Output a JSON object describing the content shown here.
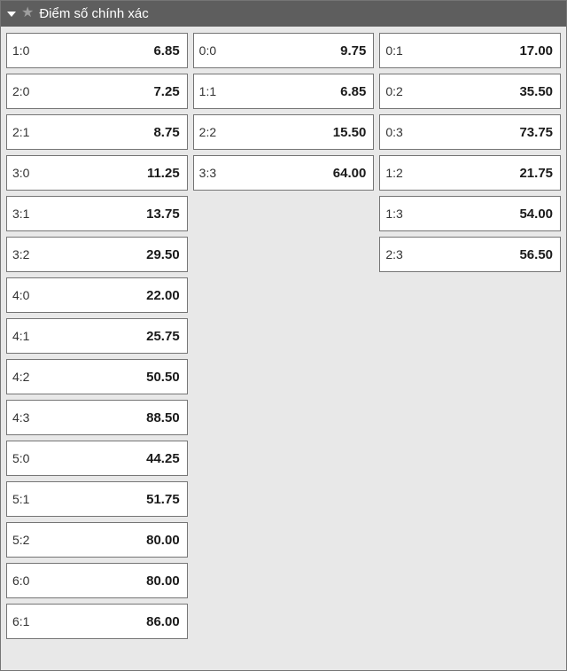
{
  "colors": {
    "header_bg": "#5e5e5e",
    "header_text": "#ffffff",
    "star": "#9e9e9e",
    "body_bg": "#e8e8e8",
    "cell_bg": "#ffffff",
    "cell_border": "#757575",
    "score_text": "#333333",
    "odds_text": "#1a1a1a"
  },
  "header": {
    "title": "Điểm số chính xác"
  },
  "market": {
    "type": "correct-score-odds",
    "columns": [
      {
        "name": "home-wins",
        "rows": [
          {
            "score": "1:0",
            "odds": "6.85"
          },
          {
            "score": "2:0",
            "odds": "7.25"
          },
          {
            "score": "2:1",
            "odds": "8.75"
          },
          {
            "score": "3:0",
            "odds": "11.25"
          },
          {
            "score": "3:1",
            "odds": "13.75"
          },
          {
            "score": "3:2",
            "odds": "29.50"
          },
          {
            "score": "4:0",
            "odds": "22.00"
          },
          {
            "score": "4:1",
            "odds": "25.75"
          },
          {
            "score": "4:2",
            "odds": "50.50"
          },
          {
            "score": "4:3",
            "odds": "88.50"
          },
          {
            "score": "5:0",
            "odds": "44.25"
          },
          {
            "score": "5:1",
            "odds": "51.75"
          },
          {
            "score": "5:2",
            "odds": "80.00"
          },
          {
            "score": "6:0",
            "odds": "80.00"
          },
          {
            "score": "6:1",
            "odds": "86.00"
          }
        ]
      },
      {
        "name": "draw",
        "rows": [
          {
            "score": "0:0",
            "odds": "9.75"
          },
          {
            "score": "1:1",
            "odds": "6.85"
          },
          {
            "score": "2:2",
            "odds": "15.50"
          },
          {
            "score": "3:3",
            "odds": "64.00"
          }
        ]
      },
      {
        "name": "away-wins",
        "rows": [
          {
            "score": "0:1",
            "odds": "17.00"
          },
          {
            "score": "0:2",
            "odds": "35.50"
          },
          {
            "score": "0:3",
            "odds": "73.75"
          },
          {
            "score": "1:2",
            "odds": "21.75"
          },
          {
            "score": "1:3",
            "odds": "54.00"
          },
          {
            "score": "2:3",
            "odds": "56.50"
          }
        ]
      }
    ]
  }
}
